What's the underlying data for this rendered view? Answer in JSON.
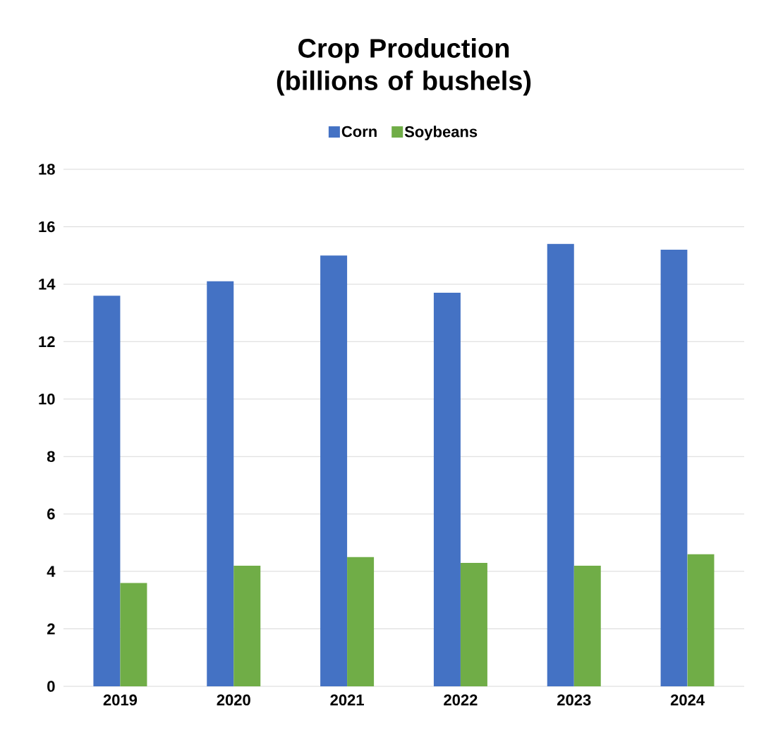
{
  "chart_data": {
    "type": "bar",
    "title": "Crop Production (billions of bushels)",
    "categories": [
      "2019",
      "2020",
      "2021",
      "2022",
      "2023",
      "2024"
    ],
    "series": [
      {
        "name": "Corn",
        "color": "#4472c4",
        "values": [
          13.6,
          14.1,
          15.0,
          13.7,
          15.4,
          15.2
        ]
      },
      {
        "name": "Soybeans",
        "color": "#70ad47",
        "values": [
          3.6,
          4.2,
          4.5,
          4.3,
          4.2,
          4.6
        ]
      }
    ],
    "ylim": [
      0,
      18
    ],
    "yticks": [
      0,
      2,
      4,
      6,
      8,
      10,
      12,
      14,
      16,
      18
    ],
    "grid": "y",
    "legend": "top"
  }
}
